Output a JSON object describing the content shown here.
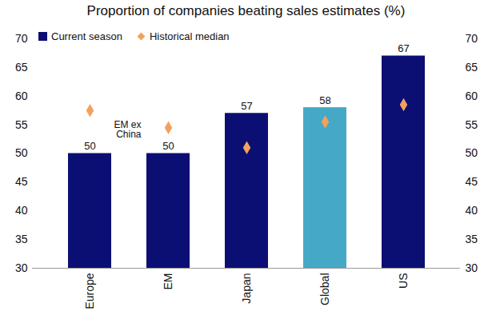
{
  "chart_data": {
    "type": "bar",
    "title": "Proportion of companies beating sales estimates (%)",
    "categories": [
      "Europe",
      "EM",
      "Japan",
      "Global",
      "US"
    ],
    "series": [
      {
        "name": "Current season",
        "type": "bar",
        "colors": [
          "#0b0f73",
          "#0b0f73",
          "#0b0f73",
          "#45a9c6",
          "#0b0f73"
        ],
        "values": [
          50,
          50,
          57,
          58,
          67
        ],
        "data_labels": true
      },
      {
        "name": "Historical median",
        "type": "scatter",
        "marker": "diamond",
        "color": "#f2a25c",
        "values": [
          57.5,
          54.5,
          51,
          55.5,
          58.5
        ]
      }
    ],
    "ylim": [
      30,
      70
    ],
    "yticks": [
      30,
      35,
      40,
      45,
      50,
      55,
      60,
      65,
      70
    ],
    "y2lim": [
      30,
      70
    ],
    "y2ticks": [
      30,
      35,
      40,
      45,
      50,
      55,
      60,
      65,
      70
    ],
    "grid": false,
    "legend": "upper left",
    "annotations": [
      {
        "text": "EM ex China",
        "category": "EM"
      }
    ]
  }
}
